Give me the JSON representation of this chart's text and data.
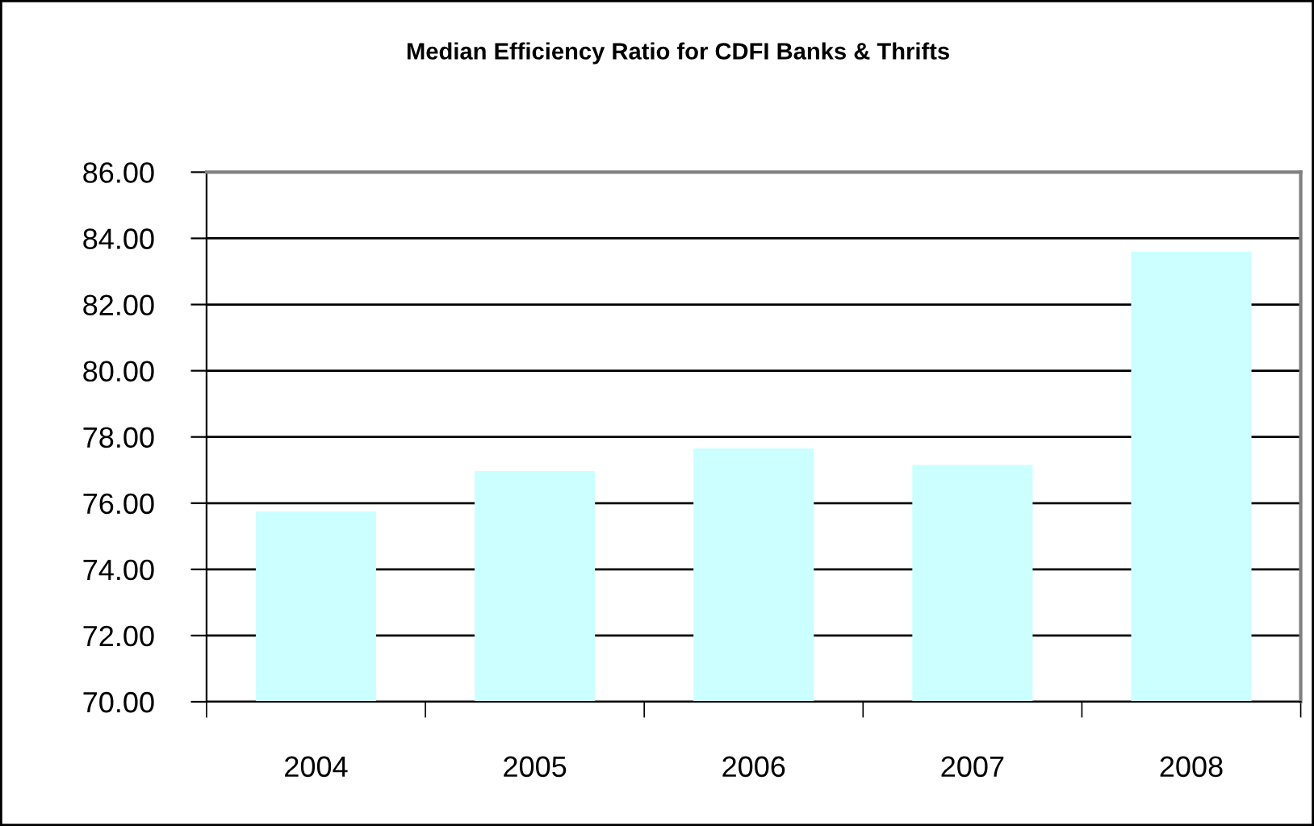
{
  "chart_data": {
    "type": "bar",
    "title": "Median Efficiency Ratio for CDFI Banks & Thrifts",
    "categories": [
      "2004",
      "2005",
      "2006",
      "2007",
      "2008"
    ],
    "values": [
      75.75,
      76.97,
      77.65,
      77.16,
      83.6
    ],
    "color": "#ccffff",
    "ylim": [
      70,
      86
    ],
    "yticks": [
      {
        "value": 70,
        "label": "70.00"
      },
      {
        "value": 72,
        "label": "72.00"
      },
      {
        "value": 74,
        "label": "74.00"
      },
      {
        "value": 76,
        "label": "76.00"
      },
      {
        "value": 78,
        "label": "78.00"
      },
      {
        "value": 80,
        "label": "80.00"
      },
      {
        "value": 82,
        "label": "82.00"
      },
      {
        "value": 84,
        "label": "84.00"
      },
      {
        "value": 86,
        "label": "86.00"
      }
    ],
    "grid": "y"
  }
}
